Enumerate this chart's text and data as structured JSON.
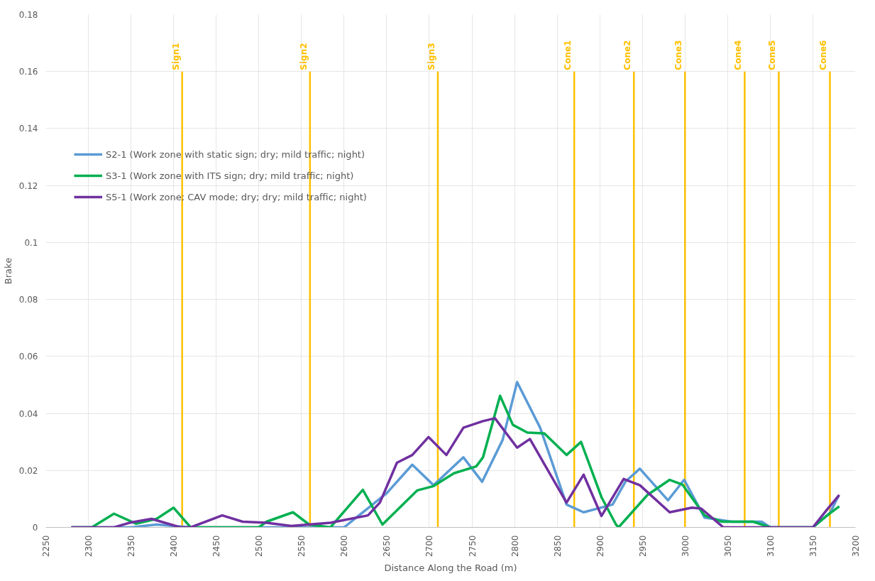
{
  "chart_data": {
    "type": "line",
    "xlabel": "Distance Along the Road (m)",
    "ylabel": "Brake",
    "xlim": [
      2250,
      3200
    ],
    "xticks": [
      2250,
      2300,
      2350,
      2400,
      2450,
      2500,
      2550,
      2600,
      2650,
      2700,
      2750,
      2800,
      2850,
      2900,
      2950,
      3000,
      3050,
      3100,
      3150,
      3200
    ],
    "ylim": [
      0,
      0.18
    ],
    "yticks": [
      0,
      0.02,
      0.04,
      0.06,
      0.08,
      0.1,
      0.12,
      0.14,
      0.16,
      0.18
    ],
    "grid": true,
    "legend": "top left",
    "line_style": "solid",
    "series": [
      {
        "name": "S2-1 (Work zone with static sign; dry; mild traffic; night)",
        "color": "#5b9bd5",
        "x": [
          2280,
          2350,
          2380,
          2420,
          2600,
          2650,
          2680,
          2705,
          2740,
          2762,
          2786,
          2803,
          2830,
          2861,
          2881,
          2915,
          2930,
          2947,
          2980,
          2999,
          3023,
          3055,
          3090,
          3100,
          3150,
          3170,
          3180
        ],
        "values": [
          0,
          0,
          0.001,
          0,
          0,
          0.012,
          0.022,
          0.0148,
          0.0246,
          0.016,
          0.0307,
          0.051,
          0.035,
          0.008,
          0.0053,
          0.008,
          0.016,
          0.0206,
          0.0095,
          0.0167,
          0.0034,
          0.002,
          0.002,
          0,
          0,
          0.005,
          0.011
        ]
      },
      {
        "name": "S3-1 (Work zone with ITS sign; dry; mild traffic; night)",
        "color": "#00b050",
        "x": [
          2280,
          2304,
          2330,
          2356,
          2380,
          2400,
          2420,
          2500,
          2509,
          2540,
          2559,
          2584,
          2622,
          2645,
          2686,
          2705,
          2729,
          2755,
          2763,
          2783,
          2798,
          2815,
          2835,
          2861,
          2878,
          2902,
          2919,
          2922,
          2956,
          2982,
          2997,
          3023,
          3043,
          3080,
          3100,
          3150,
          3166,
          3181
        ],
        "values": [
          0,
          0,
          0.0048,
          0.0013,
          0.003,
          0.0069,
          0,
          0,
          0.002,
          0.0053,
          0.001,
          0,
          0.0132,
          0.001,
          0.013,
          0.0145,
          0.019,
          0.0214,
          0.0246,
          0.0462,
          0.036,
          0.0333,
          0.033,
          0.0254,
          0.03,
          0.0106,
          0.001,
          0,
          0.0114,
          0.0167,
          0.015,
          0.0042,
          0.002,
          0.002,
          0,
          0,
          0.004,
          0.0074
        ]
      },
      {
        "name": "S5-1 (Work zone; CAV mode; dry; dry; mild traffic; night)",
        "color": "#7030a0",
        "x": [
          2280,
          2330,
          2348,
          2374,
          2408,
          2420,
          2457,
          2481,
          2509,
          2538,
          2584,
          2628,
          2642,
          2662,
          2680,
          2699,
          2720,
          2740,
          2763,
          2777,
          2803,
          2818,
          2861,
          2881,
          2902,
          2928,
          2947,
          2982,
          3008,
          3019,
          3045,
          3150,
          3166,
          3181
        ],
        "values": [
          0,
          0,
          0.0016,
          0.003,
          0,
          0,
          0.0042,
          0.002,
          0.0016,
          0.0005,
          0.0016,
          0.0042,
          0.0087,
          0.0227,
          0.0254,
          0.0317,
          0.0254,
          0.035,
          0.0373,
          0.0383,
          0.028,
          0.031,
          0.0087,
          0.0185,
          0.004,
          0.017,
          0.0148,
          0.0053,
          0.0069,
          0.0066,
          0,
          0,
          0.006,
          0.0114
        ]
      }
    ],
    "ref_lines": [
      {
        "axis": "x",
        "value": 2410,
        "label": "Sign1",
        "color": "#ffc000"
      },
      {
        "axis": "x",
        "value": 2560,
        "label": "Sign2",
        "color": "#ffc000"
      },
      {
        "axis": "x",
        "value": 2710,
        "label": "Sign3",
        "color": "#ffc000"
      },
      {
        "axis": "x",
        "value": 2870,
        "label": "Cone1",
        "color": "#ffc000"
      },
      {
        "axis": "x",
        "value": 2940,
        "label": "Cone2",
        "color": "#ffc000"
      },
      {
        "axis": "x",
        "value": 3000,
        "label": "Cone3",
        "color": "#ffc000"
      },
      {
        "axis": "x",
        "value": 3070,
        "label": "Cone4",
        "color": "#ffc000"
      },
      {
        "axis": "x",
        "value": 3110,
        "label": "Cone5",
        "color": "#ffc000"
      },
      {
        "axis": "x",
        "value": 3170,
        "label": "Cone6",
        "color": "#ffc000"
      }
    ]
  }
}
